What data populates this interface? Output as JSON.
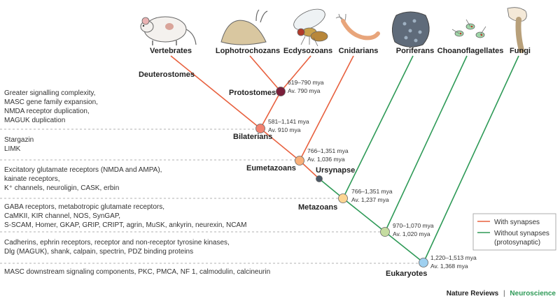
{
  "taxa": {
    "vertebrates": "Vertebrates",
    "lophotrochozans": "Lophotrochozans",
    "ecdysozoans": "Ecdysozoans",
    "cnidarians": "Cnidarians",
    "poriferans": "Poriferans",
    "choanoflagellates": "Choanoflagellates",
    "fungi": "Fungi"
  },
  "nodes": {
    "deuterostomes": "Deuterostomes",
    "protostomes": "Protostomes",
    "bilaterians": "Bilaterians",
    "eumetazoans": "Eumetazoans",
    "ursynapse": "Ursynapse",
    "metazoans": "Metazoans",
    "eukaryotes": "Eukaryotes"
  },
  "dates": {
    "protostomes_range": "619–790 mya",
    "protostomes_avg": "Av. 790 mya",
    "bilaterians_range": "581–1,141 mya",
    "bilaterians_avg": "Av. 910 mya",
    "eumetazoans_range": "766–1,351 mya",
    "eumetazoans_avg": "Av. 1,036 mya",
    "metazoans_range": "766–1,351 mya",
    "metazoans_avg": "Av. 1,237 mya",
    "choano_range": "970–1,070 mya",
    "choano_avg": "Av. 1,020 mya",
    "eukaryotes_range": "1,220–1,513 mya",
    "eukaryotes_avg": "Av. 1,368 mya"
  },
  "features": {
    "bilaterian_1": "Greater signalling complexity,",
    "bilaterian_2": "MASC gene family expansion,",
    "bilaterian_3": "NMDA receptor duplication,",
    "bilaterian_4": "MAGUK duplication",
    "eumetazoan_1": "Stargazin",
    "eumetazoan_2": "LIMK",
    "metazoan_1": "Excitatory glutamate receptors (NMDA and AMPA),",
    "metazoan_2": "kainate receptors,",
    "metazoan_3": "K⁺ channels, neuroligin, CASK, erbin",
    "holozoan_1": "GABA receptors, metabotropic glutamate receptors,",
    "holozoan_2": "CaMKII, KIR channel, NOS, SynGAP,",
    "holozoan_3": "S-SCAM, Homer, GKAP, GRIP, CRIPT, agrin, MuSK, ankyrin, neurexin, NCAM",
    "opisthokont_1": "Cadherins, ephrin receptors, receptor and non-receptor tyrosine kinases,",
    "opisthokont_2": "Dlg (MAGUK), shank, calpain, spectrin, PDZ binding proteins",
    "eukaryote_1": "MASC downstream signaling components, PKC, PMCA, NF 1, calmodulin, calcineurin"
  },
  "legend": {
    "with": "With synapses",
    "without_1": "Without synapses",
    "without_2": "(protosynaptic)"
  },
  "credit": {
    "journal": "Nature Reviews",
    "separator": "|",
    "section": "Neuroscience"
  },
  "colors": {
    "with_synapses": "#e8613f",
    "without_synapses": "#2e9a57",
    "dashed": "#999999"
  },
  "icons": [
    "mouse-icon",
    "slug-icon",
    "fly-icon",
    "hydra-icon",
    "sponge-icon",
    "choanoflagellate-icon",
    "fungus-icon"
  ]
}
